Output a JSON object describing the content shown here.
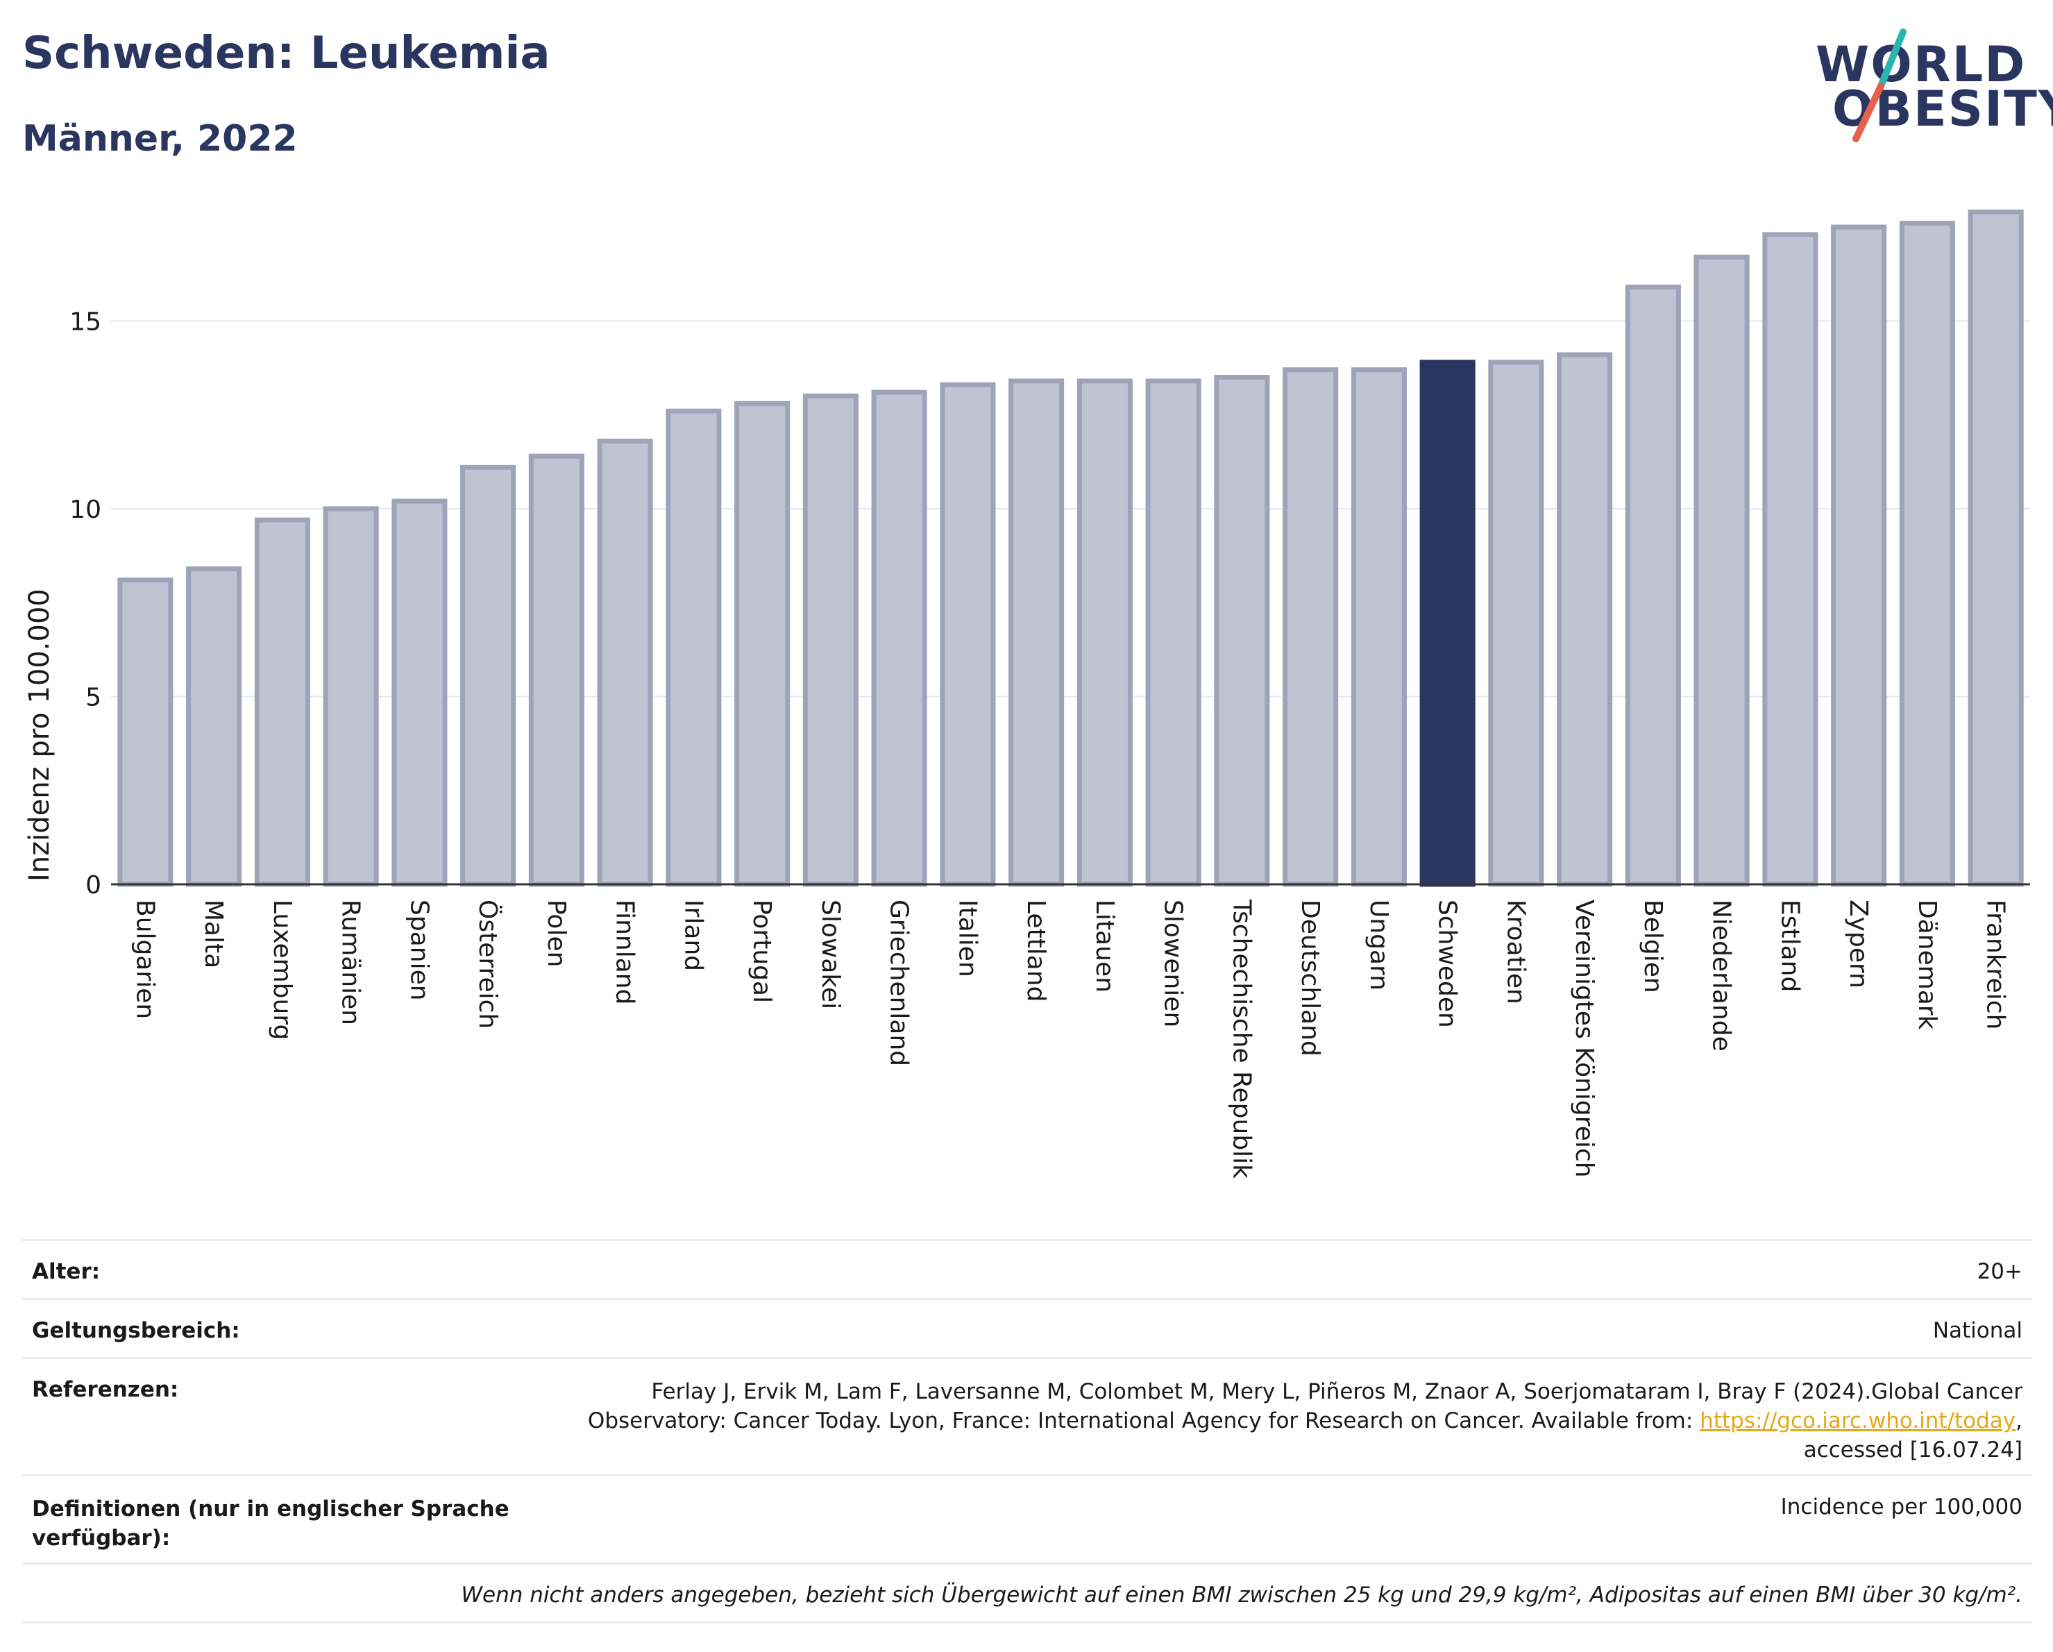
{
  "header": {
    "title": "Schweden: Leukemia",
    "subtitle": "Männer, 2022"
  },
  "logo": {
    "line1": "WORLD",
    "line2": "OBESITY",
    "text_color": "#2a3560",
    "accent_colors": [
      "#2bb5b0",
      "#e8604c"
    ]
  },
  "colors": {
    "bar": "#bfc3d2",
    "bar_border": "#9ea3b8",
    "highlight": "#2a3560",
    "grid": "#e6e8ef",
    "axis": "#333333"
  },
  "chart_data": {
    "type": "bar",
    "ylabel": "Inzidenz pro 100.000",
    "ylim": [
      0,
      18
    ],
    "yticks": [
      0,
      5,
      10,
      15
    ],
    "grid": true,
    "highlight": "Schweden",
    "categories": [
      "Bulgarien",
      "Malta",
      "Luxemburg",
      "Rumänien",
      "Spanien",
      "Österreich",
      "Polen",
      "Finnland",
      "Irland",
      "Portugal",
      "Slowakei",
      "Griechenland",
      "Italien",
      "Lettland",
      "Litauen",
      "Slowenien",
      "Tschechische Republik",
      "Deutschland",
      "Ungarn",
      "Schweden",
      "Kroatien",
      "Vereinigtes Königreich",
      "Belgien",
      "Niederlande",
      "Estland",
      "Zypern",
      "Dänemark",
      "Frankreich"
    ],
    "values": [
      8.1,
      8.4,
      9.7,
      10.0,
      10.2,
      11.1,
      11.4,
      11.8,
      12.6,
      12.8,
      13.0,
      13.1,
      13.3,
      13.4,
      13.4,
      13.4,
      13.5,
      13.7,
      13.7,
      13.9,
      13.9,
      14.1,
      15.9,
      16.7,
      17.3,
      17.5,
      17.6,
      17.9
    ]
  },
  "info": {
    "alter_label": "Alter:",
    "alter_value": "20+",
    "scope_label": "Geltungsbereich:",
    "scope_value": "National",
    "ref_label": "Referenzen:",
    "ref_text_1": "Ferlay J, Ervik M, Lam F, Laversanne M, Colombet M, Mery L, Piñeros M, Znaor A, Soerjomataram I, Bray F (2024).Global Cancer Observatory: Cancer Today. Lyon, France: International Agency for Research on Cancer. Available from: ",
    "ref_link": "https://gco.iarc.who.int/today",
    "ref_text_2": ", accessed [16.07.24]",
    "def_label": "Definitionen (nur in englischer Sprache verfügbar):",
    "def_value": "Incidence per 100,000",
    "note": "Wenn nicht anders angegeben, bezieht sich Übergewicht auf einen BMI zwischen 25 kg und 29,9 kg/m², Adipositas auf einen BMI über 30 kg/m²."
  }
}
